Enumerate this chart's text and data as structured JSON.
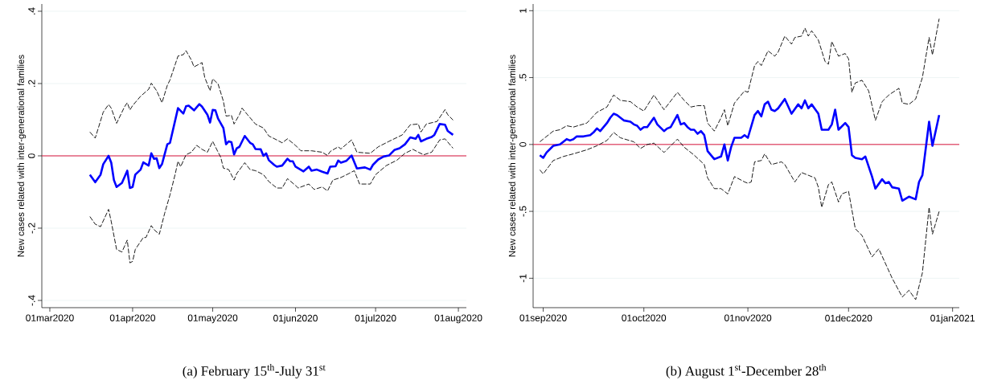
{
  "chart_data": [
    {
      "type": "line",
      "ylabel": "New cases related with inter-generational families",
      "annotations": [
        "(a) February 15$^{th}$-July 31$^{st}$"
      ],
      "xlim": [
        "2020-02-27",
        "2020-08-04"
      ],
      "ylim": [
        -0.42,
        0.42
      ],
      "xticks": [
        {
          "value": "2020-03-01",
          "label": "01mar2020"
        },
        {
          "value": "2020-04-01",
          "label": "01apr2020"
        },
        {
          "value": "2020-05-01",
          "label": "01may2020"
        },
        {
          "value": "2020-06-01",
          "label": "01jun2020"
        },
        {
          "value": "2020-07-01",
          "label": "01jul2020"
        },
        {
          "value": "2020-08-01",
          "label": "01aug2020"
        }
      ],
      "yticks": [
        {
          "value": -0.4,
          "label": "-.4"
        },
        {
          "value": -0.2,
          "label": "-.2"
        },
        0,
        {
          "value": 0.2,
          "label": ".2"
        },
        {
          "value": 0.4,
          "label": ".4"
        }
      ],
      "grid": "y",
      "ref_lines": [
        {
          "axis": "y",
          "value": 0,
          "color": "#dc143c"
        }
      ],
      "series": [
        {
          "color": "#000000",
          "line_style": "dashed",
          "x": [
            "2020-03-16",
            "2020-03-18",
            "2020-03-21",
            "2020-03-23",
            "2020-03-24",
            "2020-03-26",
            "2020-03-29",
            "2020-03-30",
            "2020-03-31",
            "2020-04-01",
            "2020-04-04",
            "2020-04-07",
            "2020-04-08",
            "2020-04-10",
            "2020-04-12",
            "2020-04-14",
            "2020-04-15",
            "2020-04-17",
            "2020-04-18",
            "2020-04-20",
            "2020-04-21",
            "2020-04-23",
            "2020-04-24",
            "2020-04-27",
            "2020-04-28",
            "2020-04-30",
            "2020-05-01",
            "2020-05-03",
            "2020-05-05",
            "2020-05-06",
            "2020-05-08",
            "2020-05-09",
            "2020-05-11",
            "2020-05-12",
            "2020-05-14",
            "2020-05-17",
            "2020-05-20",
            "2020-05-22",
            "2020-05-25",
            "2020-05-27",
            "2020-05-29",
            "2020-06-01",
            "2020-06-03",
            "2020-06-07",
            "2020-06-11",
            "2020-06-13",
            "2020-06-14",
            "2020-06-17",
            "2020-06-18",
            "2020-06-22",
            "2020-06-24",
            "2020-06-29",
            "2020-07-02",
            "2020-07-06",
            "2020-07-11",
            "2020-07-14",
            "2020-07-17",
            "2020-07-18",
            "2020-07-20",
            "2020-07-24",
            "2020-07-27",
            "2020-07-28",
            "2020-07-30"
          ],
          "values": [
            0.066,
            0.049,
            0.121,
            0.142,
            0.132,
            0.09,
            0.136,
            0.147,
            0.127,
            0.139,
            0.165,
            0.184,
            0.201,
            0.18,
            0.147,
            0.195,
            0.21,
            0.254,
            0.276,
            0.28,
            0.291,
            0.265,
            0.246,
            0.258,
            0.217,
            0.18,
            0.213,
            0.199,
            0.151,
            0.11,
            0.112,
            0.088,
            0.114,
            0.132,
            0.114,
            0.088,
            0.077,
            0.055,
            0.044,
            0.036,
            0.047,
            0.029,
            0.014,
            0.014,
            0.01,
            0.001,
            0.012,
            0.025,
            0.019,
            0.044,
            0.01,
            0.007,
            0.025,
            0.04,
            0.058,
            0.086,
            0.088,
            0.066,
            0.088,
            0.095,
            0.128,
            0.114,
            0.099
          ]
        },
        {
          "color": "#000000",
          "line_style": "dashed",
          "x": [
            "2020-03-16",
            "2020-03-18",
            "2020-03-20",
            "2020-03-23",
            "2020-03-24",
            "2020-03-26",
            "2020-03-28",
            "2020-03-30",
            "2020-03-31",
            "2020-04-01",
            "2020-04-02",
            "2020-04-05",
            "2020-04-06",
            "2020-04-08",
            "2020-04-09",
            "2020-04-11",
            "2020-04-13",
            "2020-04-15",
            "2020-04-17",
            "2020-04-18",
            "2020-04-19",
            "2020-04-21",
            "2020-04-23",
            "2020-04-25",
            "2020-04-27",
            "2020-04-29",
            "2020-05-01",
            "2020-05-02",
            "2020-05-04",
            "2020-05-05",
            "2020-05-07",
            "2020-05-09",
            "2020-05-10",
            "2020-05-13",
            "2020-05-15",
            "2020-05-17",
            "2020-05-20",
            "2020-05-22",
            "2020-05-25",
            "2020-05-27",
            "2020-05-29",
            "2020-06-01",
            "2020-06-02",
            "2020-06-06",
            "2020-06-08",
            "2020-06-11",
            "2020-06-13",
            "2020-06-15",
            "2020-06-18",
            "2020-06-21",
            "2020-06-23",
            "2020-06-25",
            "2020-06-29",
            "2020-07-01",
            "2020-07-05",
            "2020-07-09",
            "2020-07-12",
            "2020-07-15",
            "2020-07-17",
            "2020-07-19",
            "2020-07-22",
            "2020-07-25",
            "2020-07-27",
            "2020-07-30"
          ],
          "values": [
            -0.168,
            -0.189,
            -0.196,
            -0.148,
            -0.182,
            -0.259,
            -0.266,
            -0.233,
            -0.296,
            -0.292,
            -0.259,
            -0.226,
            -0.226,
            -0.193,
            -0.204,
            -0.217,
            -0.159,
            -0.108,
            -0.049,
            -0.015,
            -0.03,
            0.003,
            0.01,
            0.029,
            0.018,
            0.01,
            0.04,
            0.025,
            -0.004,
            -0.034,
            -0.038,
            -0.067,
            -0.049,
            -0.019,
            -0.038,
            -0.041,
            -0.052,
            -0.071,
            -0.089,
            -0.089,
            -0.063,
            -0.082,
            -0.089,
            -0.078,
            -0.093,
            -0.086,
            -0.097,
            -0.067,
            -0.06,
            -0.049,
            -0.041,
            -0.078,
            -0.078,
            -0.052,
            -0.027,
            -0.012,
            0.007,
            0.018,
            0.01,
            0.003,
            0.01,
            0.044,
            0.047,
            0.021
          ]
        },
        {
          "color": "#0000ff",
          "line_style": "solid",
          "x": [
            "2020-03-16",
            "2020-03-18",
            "2020-03-20",
            "2020-03-21",
            "2020-03-23",
            "2020-03-24",
            "2020-03-25",
            "2020-03-26",
            "2020-03-28",
            "2020-03-30",
            "2020-03-31",
            "2020-04-01",
            "2020-04-02",
            "2020-04-04",
            "2020-04-05",
            "2020-04-07",
            "2020-04-08",
            "2020-04-09",
            "2020-04-10",
            "2020-04-11",
            "2020-04-12",
            "2020-04-14",
            "2020-04-15",
            "2020-04-18",
            "2020-04-20",
            "2020-04-21",
            "2020-04-22",
            "2020-04-24",
            "2020-04-26",
            "2020-04-27",
            "2020-04-29",
            "2020-04-30",
            "2020-05-01",
            "2020-05-02",
            "2020-05-03",
            "2020-05-05",
            "2020-05-06",
            "2020-05-07",
            "2020-05-08",
            "2020-05-09",
            "2020-05-10",
            "2020-05-11",
            "2020-05-13",
            "2020-05-15",
            "2020-05-16",
            "2020-05-17",
            "2020-05-19",
            "2020-05-20",
            "2020-05-21",
            "2020-05-22",
            "2020-05-24",
            "2020-05-25",
            "2020-05-27",
            "2020-05-29",
            "2020-05-30",
            "2020-05-31",
            "2020-06-01",
            "2020-06-04",
            "2020-06-06",
            "2020-06-07",
            "2020-06-09",
            "2020-06-11",
            "2020-06-13",
            "2020-06-14",
            "2020-06-16",
            "2020-06-17",
            "2020-06-18",
            "2020-06-20",
            "2020-06-22",
            "2020-06-24",
            "2020-06-27",
            "2020-06-29",
            "2020-06-30",
            "2020-07-02",
            "2020-07-04",
            "2020-07-06",
            "2020-07-08",
            "2020-07-10",
            "2020-07-12",
            "2020-07-14",
            "2020-07-16",
            "2020-07-17",
            "2020-07-18",
            "2020-07-20",
            "2020-07-22",
            "2020-07-23",
            "2020-07-25",
            "2020-07-27",
            "2020-07-28",
            "2020-07-30"
          ],
          "values": [
            -0.052,
            -0.073,
            -0.052,
            -0.023,
            0.0,
            -0.019,
            -0.067,
            -0.086,
            -0.075,
            -0.041,
            -0.089,
            -0.086,
            -0.052,
            -0.038,
            -0.018,
            -0.027,
            0.007,
            -0.008,
            -0.007,
            -0.034,
            -0.023,
            0.032,
            0.036,
            0.132,
            0.117,
            0.137,
            0.139,
            0.126,
            0.143,
            0.136,
            0.114,
            0.092,
            0.127,
            0.126,
            0.103,
            0.077,
            0.032,
            0.04,
            0.038,
            0.004,
            0.021,
            0.025,
            0.055,
            0.036,
            0.032,
            0.019,
            0.018,
            0.0,
            0.007,
            -0.012,
            -0.025,
            -0.03,
            -0.027,
            -0.008,
            -0.015,
            -0.015,
            -0.03,
            -0.043,
            -0.03,
            -0.041,
            -0.038,
            -0.044,
            -0.049,
            -0.03,
            -0.029,
            -0.013,
            -0.019,
            -0.014,
            0.001,
            -0.035,
            -0.032,
            -0.038,
            -0.025,
            -0.01,
            -0.002,
            0.001,
            0.016,
            0.021,
            0.032,
            0.051,
            0.047,
            0.058,
            0.04,
            0.047,
            0.052,
            0.058,
            0.088,
            0.086,
            0.069,
            0.058
          ]
        }
      ]
    },
    {
      "type": "line",
      "ylabel": "New cases related with inter-generational families",
      "annotations": [
        "(b) August 1$^{st}$-December 28$^{th}$"
      ],
      "xlim": [
        "2020-08-29",
        "2021-01-03"
      ],
      "ylim": [
        -1.22,
        1.05
      ],
      "xticks": [
        {
          "value": "2020-09-01",
          "label": "01sep2020"
        },
        {
          "value": "2020-10-01",
          "label": "01oct2020"
        },
        {
          "value": "2020-11-01",
          "label": "01nov2020"
        },
        {
          "value": "2020-12-01",
          "label": "01dec2020"
        },
        {
          "value": "2021-01-01",
          "label": "01jan2021"
        }
      ],
      "yticks": [
        -1,
        {
          "value": -0.5,
          "label": "-.5"
        },
        0,
        {
          "value": 0.5,
          "label": ".5"
        },
        1
      ],
      "grid": "y",
      "ref_lines": [
        {
          "axis": "y",
          "value": 0,
          "color": "#dc143c"
        }
      ],
      "series": [
        {
          "color": "#000000",
          "line_style": "dashed",
          "x": [
            "2020-08-31",
            "2020-09-01",
            "2020-09-04",
            "2020-09-06",
            "2020-09-08",
            "2020-09-10",
            "2020-09-14",
            "2020-09-17",
            "2020-09-20",
            "2020-09-22",
            "2020-09-24",
            "2020-09-27",
            "2020-09-29",
            "2020-10-01",
            "2020-10-04",
            "2020-10-07",
            "2020-10-11",
            "2020-10-13",
            "2020-10-15",
            "2020-10-17",
            "2020-10-19",
            "2020-10-20",
            "2020-10-22",
            "2020-10-24",
            "2020-10-25",
            "2020-10-26",
            "2020-10-28",
            "2020-10-31",
            "2020-11-01",
            "2020-11-02",
            "2020-11-03",
            "2020-11-04",
            "2020-11-05",
            "2020-11-07",
            "2020-11-09",
            "2020-11-10",
            "2020-11-12",
            "2020-11-14",
            "2020-11-15",
            "2020-11-17",
            "2020-11-18",
            "2020-11-19",
            "2020-11-20",
            "2020-11-22",
            "2020-11-24",
            "2020-11-25",
            "2020-11-26",
            "2020-11-28",
            "2020-11-30",
            "2020-12-01",
            "2020-12-02",
            "2020-12-03",
            "2020-12-05",
            "2020-12-07",
            "2020-12-09",
            "2020-12-11",
            "2020-12-13",
            "2020-12-16",
            "2020-12-17",
            "2020-12-19",
            "2020-12-21",
            "2020-12-23",
            "2020-12-25",
            "2020-12-26",
            "2020-12-28"
          ],
          "values": [
            0.02,
            0.04,
            0.1,
            0.11,
            0.14,
            0.13,
            0.16,
            0.24,
            0.28,
            0.37,
            0.33,
            0.32,
            0.28,
            0.25,
            0.37,
            0.26,
            0.39,
            0.33,
            0.28,
            0.29,
            0.29,
            0.16,
            0.1,
            0.2,
            0.26,
            0.14,
            0.31,
            0.4,
            0.39,
            0.49,
            0.59,
            0.62,
            0.59,
            0.7,
            0.66,
            0.69,
            0.81,
            0.75,
            0.8,
            0.81,
            0.87,
            0.81,
            0.85,
            0.78,
            0.62,
            0.6,
            0.77,
            0.66,
            0.68,
            0.64,
            0.39,
            0.46,
            0.48,
            0.4,
            0.18,
            0.32,
            0.37,
            0.42,
            0.31,
            0.3,
            0.34,
            0.5,
            0.8,
            0.67,
            0.94
          ]
        },
        {
          "color": "#000000",
          "line_style": "dashed",
          "x": [
            "2020-08-31",
            "2020-09-01",
            "2020-09-04",
            "2020-09-07",
            "2020-09-10",
            "2020-09-14",
            "2020-09-17",
            "2020-09-20",
            "2020-09-22",
            "2020-09-24",
            "2020-09-28",
            "2020-09-30",
            "2020-10-02",
            "2020-10-04",
            "2020-10-07",
            "2020-10-11",
            "2020-10-13",
            "2020-10-16",
            "2020-10-19",
            "2020-10-20",
            "2020-10-22",
            "2020-10-24",
            "2020-10-26",
            "2020-10-28",
            "2020-10-31",
            "2020-11-01",
            "2020-11-02",
            "2020-11-03",
            "2020-11-05",
            "2020-11-06",
            "2020-11-08",
            "2020-11-11",
            "2020-11-12",
            "2020-11-15",
            "2020-11-17",
            "2020-11-21",
            "2020-11-22",
            "2020-11-23",
            "2020-11-25",
            "2020-11-26",
            "2020-11-28",
            "2020-11-29",
            "2020-12-01",
            "2020-12-03",
            "2020-12-05",
            "2020-12-08",
            "2020-12-10",
            "2020-12-12",
            "2020-12-14",
            "2020-12-17",
            "2020-12-19",
            "2020-12-21",
            "2020-12-23",
            "2020-12-25",
            "2020-12-26",
            "2020-12-28"
          ],
          "values": [
            -0.19,
            -0.22,
            -0.12,
            -0.09,
            -0.07,
            -0.04,
            -0.01,
            0.03,
            0.09,
            0.05,
            0.02,
            -0.03,
            0.0,
            0.01,
            -0.06,
            0.04,
            -0.02,
            -0.08,
            -0.15,
            -0.25,
            -0.33,
            -0.33,
            -0.37,
            -0.24,
            -0.28,
            -0.29,
            -0.28,
            -0.13,
            -0.12,
            -0.07,
            -0.15,
            -0.13,
            -0.15,
            -0.28,
            -0.21,
            -0.25,
            -0.32,
            -0.47,
            -0.3,
            -0.28,
            -0.43,
            -0.37,
            -0.35,
            -0.63,
            -0.68,
            -0.84,
            -0.78,
            -0.89,
            -1.0,
            -1.14,
            -1.09,
            -1.16,
            -0.96,
            -0.47,
            -0.67,
            -0.5
          ]
        },
        {
          "color": "#0000ff",
          "line_style": "solid",
          "x": [
            "2020-08-31",
            "2020-09-01",
            "2020-09-02",
            "2020-09-04",
            "2020-09-06",
            "2020-09-07",
            "2020-09-08",
            "2020-09-09",
            "2020-09-10",
            "2020-09-11",
            "2020-09-13",
            "2020-09-15",
            "2020-09-16",
            "2020-09-17",
            "2020-09-18",
            "2020-09-20",
            "2020-09-21",
            "2020-09-22",
            "2020-09-23",
            "2020-09-24",
            "2020-09-25",
            "2020-09-27",
            "2020-09-28",
            "2020-09-29",
            "2020-09-30",
            "2020-10-01",
            "2020-10-02",
            "2020-10-04",
            "2020-10-05",
            "2020-10-07",
            "2020-10-08",
            "2020-10-09",
            "2020-10-11",
            "2020-10-12",
            "2020-10-13",
            "2020-10-14",
            "2020-10-15",
            "2020-10-16",
            "2020-10-17",
            "2020-10-18",
            "2020-10-19",
            "2020-10-20",
            "2020-10-22",
            "2020-10-24",
            "2020-10-25",
            "2020-10-26",
            "2020-10-27",
            "2020-10-28",
            "2020-10-30",
            "2020-10-31",
            "2020-11-01",
            "2020-11-03",
            "2020-11-04",
            "2020-11-05",
            "2020-11-06",
            "2020-11-07",
            "2020-11-08",
            "2020-11-09",
            "2020-11-10",
            "2020-11-12",
            "2020-11-14",
            "2020-11-16",
            "2020-11-17",
            "2020-11-18",
            "2020-11-19",
            "2020-11-20",
            "2020-11-22",
            "2020-11-23",
            "2020-11-25",
            "2020-11-26",
            "2020-11-27",
            "2020-11-28",
            "2020-11-30",
            "2020-12-01",
            "2020-12-02",
            "2020-12-03",
            "2020-12-05",
            "2020-12-06",
            "2020-12-08",
            "2020-12-09",
            "2020-12-11",
            "2020-12-12",
            "2020-12-13",
            "2020-12-14",
            "2020-12-16",
            "2020-12-17",
            "2020-12-19",
            "2020-12-21",
            "2020-12-22",
            "2020-12-23",
            "2020-12-25",
            "2020-12-26",
            "2020-12-28"
          ],
          "values": [
            -0.08,
            -0.1,
            -0.06,
            -0.01,
            0.0,
            0.02,
            0.04,
            0.03,
            0.04,
            0.06,
            0.06,
            0.07,
            0.09,
            0.12,
            0.1,
            0.16,
            0.2,
            0.23,
            0.22,
            0.2,
            0.18,
            0.17,
            0.15,
            0.14,
            0.11,
            0.13,
            0.13,
            0.2,
            0.15,
            0.1,
            0.12,
            0.13,
            0.22,
            0.15,
            0.16,
            0.13,
            0.11,
            0.11,
            0.08,
            0.1,
            0.07,
            -0.05,
            -0.11,
            -0.09,
            0.0,
            -0.12,
            -0.02,
            0.05,
            0.05,
            0.07,
            0.05,
            0.22,
            0.25,
            0.21,
            0.3,
            0.32,
            0.26,
            0.25,
            0.27,
            0.34,
            0.23,
            0.3,
            0.27,
            0.33,
            0.27,
            0.3,
            0.23,
            0.11,
            0.11,
            0.15,
            0.26,
            0.11,
            0.16,
            0.13,
            -0.08,
            -0.1,
            -0.11,
            -0.09,
            -0.24,
            -0.33,
            -0.26,
            -0.29,
            -0.28,
            -0.32,
            -0.33,
            -0.42,
            -0.39,
            -0.41,
            -0.28,
            -0.23,
            0.17,
            -0.01,
            0.22
          ]
        }
      ]
    }
  ]
}
